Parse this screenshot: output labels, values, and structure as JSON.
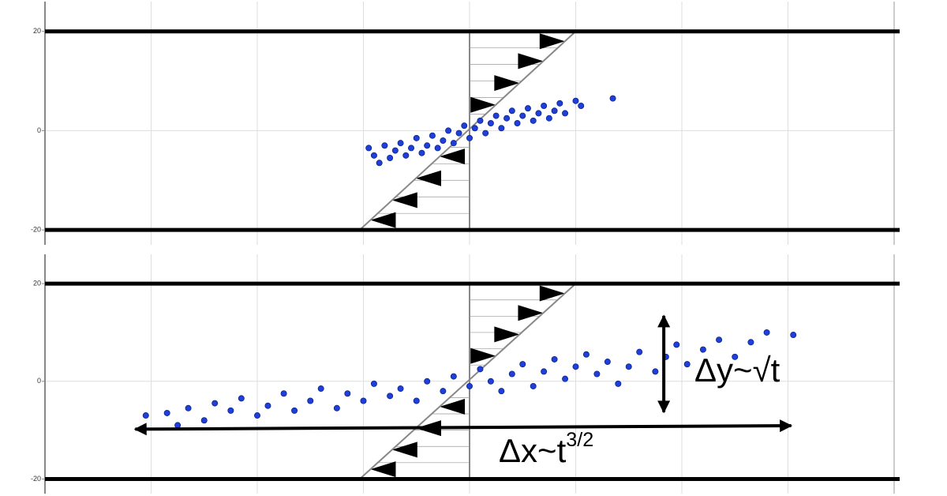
{
  "chart_data": [
    {
      "type": "scatter",
      "color": "#1f3fd8",
      "x": [
        -19,
        -18,
        -17,
        -16,
        -15,
        -14,
        -13,
        -12,
        -11,
        -10,
        -9,
        -8,
        -7,
        -6,
        -5,
        -4,
        -3,
        -2,
        -1,
        0,
        1,
        2,
        3,
        4,
        5,
        6,
        7,
        8,
        9,
        10,
        11,
        12,
        13,
        14,
        15,
        16,
        17,
        18,
        20,
        21,
        27
      ],
      "y": [
        -3.5,
        -5,
        -6.5,
        -3,
        -5.5,
        -4,
        -2.5,
        -5,
        -3.5,
        -1.5,
        -4.5,
        -3,
        -1,
        -3.5,
        -2,
        0,
        -2.5,
        -0.5,
        1,
        -1.5,
        0.5,
        2,
        -0.5,
        1.5,
        3,
        0.5,
        2.5,
        4,
        1.5,
        3,
        4.5,
        2,
        3.5,
        5,
        2.5,
        4,
        5.5,
        3.5,
        6,
        5,
        6.5
      ],
      "xlim": [
        -80,
        80
      ],
      "xticks": [
        -80,
        -60,
        -40,
        -20,
        0,
        20,
        40,
        60,
        80
      ],
      "ylim": [
        -23,
        26
      ],
      "yticks": [
        -20,
        0,
        20
      ],
      "grid": true,
      "walls": [
        20,
        -20
      ],
      "shear_profile": {
        "x": [
          -20.7,
          20
        ],
        "y": [
          -20,
          20
        ]
      }
    },
    {
      "type": "scatter",
      "color": "#1f3fd8",
      "x": [
        -61,
        -57,
        -55,
        -53,
        -50,
        -48,
        -45,
        -43,
        -40,
        -38,
        -35,
        -33,
        -30,
        -28,
        -25,
        -23,
        -20,
        -18,
        -15,
        -13,
        -10,
        -8,
        -5,
        -3,
        0,
        2,
        4,
        6,
        8,
        10,
        12,
        14,
        16,
        18,
        20,
        22,
        24,
        26,
        28,
        30,
        32,
        35,
        37,
        39,
        41,
        44,
        47,
        50,
        53,
        56,
        61
      ],
      "y": [
        -7,
        -6.5,
        -9,
        -5.5,
        -8,
        -4.5,
        -6,
        -3.5,
        -7,
        -5,
        -2.5,
        -6,
        -4,
        -1.5,
        -5.5,
        -2.5,
        -4,
        -0.5,
        -3,
        -1.5,
        -4,
        0,
        -2,
        1,
        -1,
        2.5,
        0,
        -2,
        1.5,
        3.5,
        -1,
        2,
        4.5,
        0.5,
        3,
        5.5,
        1.5,
        4,
        -0.5,
        3,
        6,
        2,
        5,
        7.5,
        3.5,
        6.5,
        8.5,
        5,
        8,
        10,
        9.5
      ],
      "xlim": [
        -80,
        80
      ],
      "xticks": [
        -80,
        -60,
        -40,
        -20,
        0,
        20,
        40,
        60,
        80
      ],
      "ylim": [
        -23,
        26
      ],
      "yticks": [
        -20,
        0,
        20
      ],
      "grid": true,
      "walls": [
        20,
        -20
      ],
      "shear_profile": {
        "x": [
          -20.7,
          20
        ],
        "y": [
          -20,
          20
        ]
      },
      "spans": [
        {
          "x": [
            36.6,
            36.6
          ],
          "y": [
            13.4,
            -6.3
          ]
        },
        {
          "x": [
            -63,
            60.6
          ],
          "y": [
            -9.8,
            -9.1
          ]
        }
      ],
      "annotations": [
        {
          "text": "Δy~√t"
        },
        {
          "text": "Δx~t",
          "superscript": "3/2"
        }
      ]
    }
  ]
}
